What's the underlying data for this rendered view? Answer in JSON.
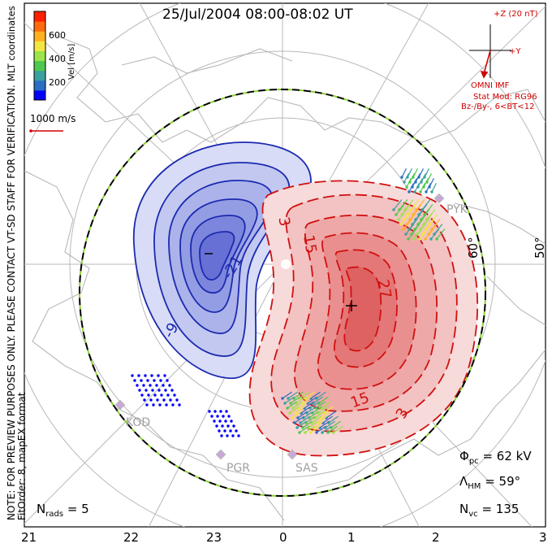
{
  "title": "25/Jul/2004 08:00-08:02 UT",
  "color_bar": {
    "ticks": [
      "600",
      "400",
      "200"
    ],
    "label": "Vel [m/s]",
    "colors": [
      "#0000ff",
      "#2a6fc4",
      "#3aa0a0",
      "#4ec84e",
      "#9de34a",
      "#f2e640",
      "#ffb020",
      "#ff6a10",
      "#ff2000"
    ]
  },
  "vector_scale": "1000 m/s",
  "left_notes": {
    "coord": "MLT coordinates",
    "preview": "NOTE: FOR PREVIEW PURPOSES ONLY. PLEASE CONTACT VT-SD STAFF FOR VERIFICATION.",
    "fit": "FitOrder: 8, mapEX format"
  },
  "imf": {
    "z_label": "+Z (20 nT)",
    "y_label": "+Y",
    "source": "OMNI IMF",
    "model": "Stat Mod: RG96",
    "condition": "Bz-/By-, 6<BT<12"
  },
  "latitude_labels": [
    "60°",
    "50°"
  ],
  "contours": {
    "negative_labels": [
      "-21",
      "-9"
    ],
    "positive_labels": [
      "3",
      "15",
      "27",
      "15",
      "3"
    ],
    "potential_min_symbol": "−",
    "potential_max_symbol": "+"
  },
  "radars": [
    "KOD",
    "PGR",
    "SAS",
    "PYK"
  ],
  "stats": {
    "phi_symbol": "Φ",
    "phi_sub": "pc",
    "phi_value": "= 62 kV",
    "lambda_symbol": "Λ",
    "lambda_sub": "HM",
    "lambda_value": "= 59°",
    "nvc_symbol": "N",
    "nvc_sub": "vc",
    "nvc_value": "= 135",
    "nrads_symbol": "N",
    "nrads_sub": "rads",
    "nrads_value": "= 5"
  },
  "mlt_ticks": [
    "21",
    "22",
    "23",
    "0",
    "1",
    "2",
    "3"
  ]
}
